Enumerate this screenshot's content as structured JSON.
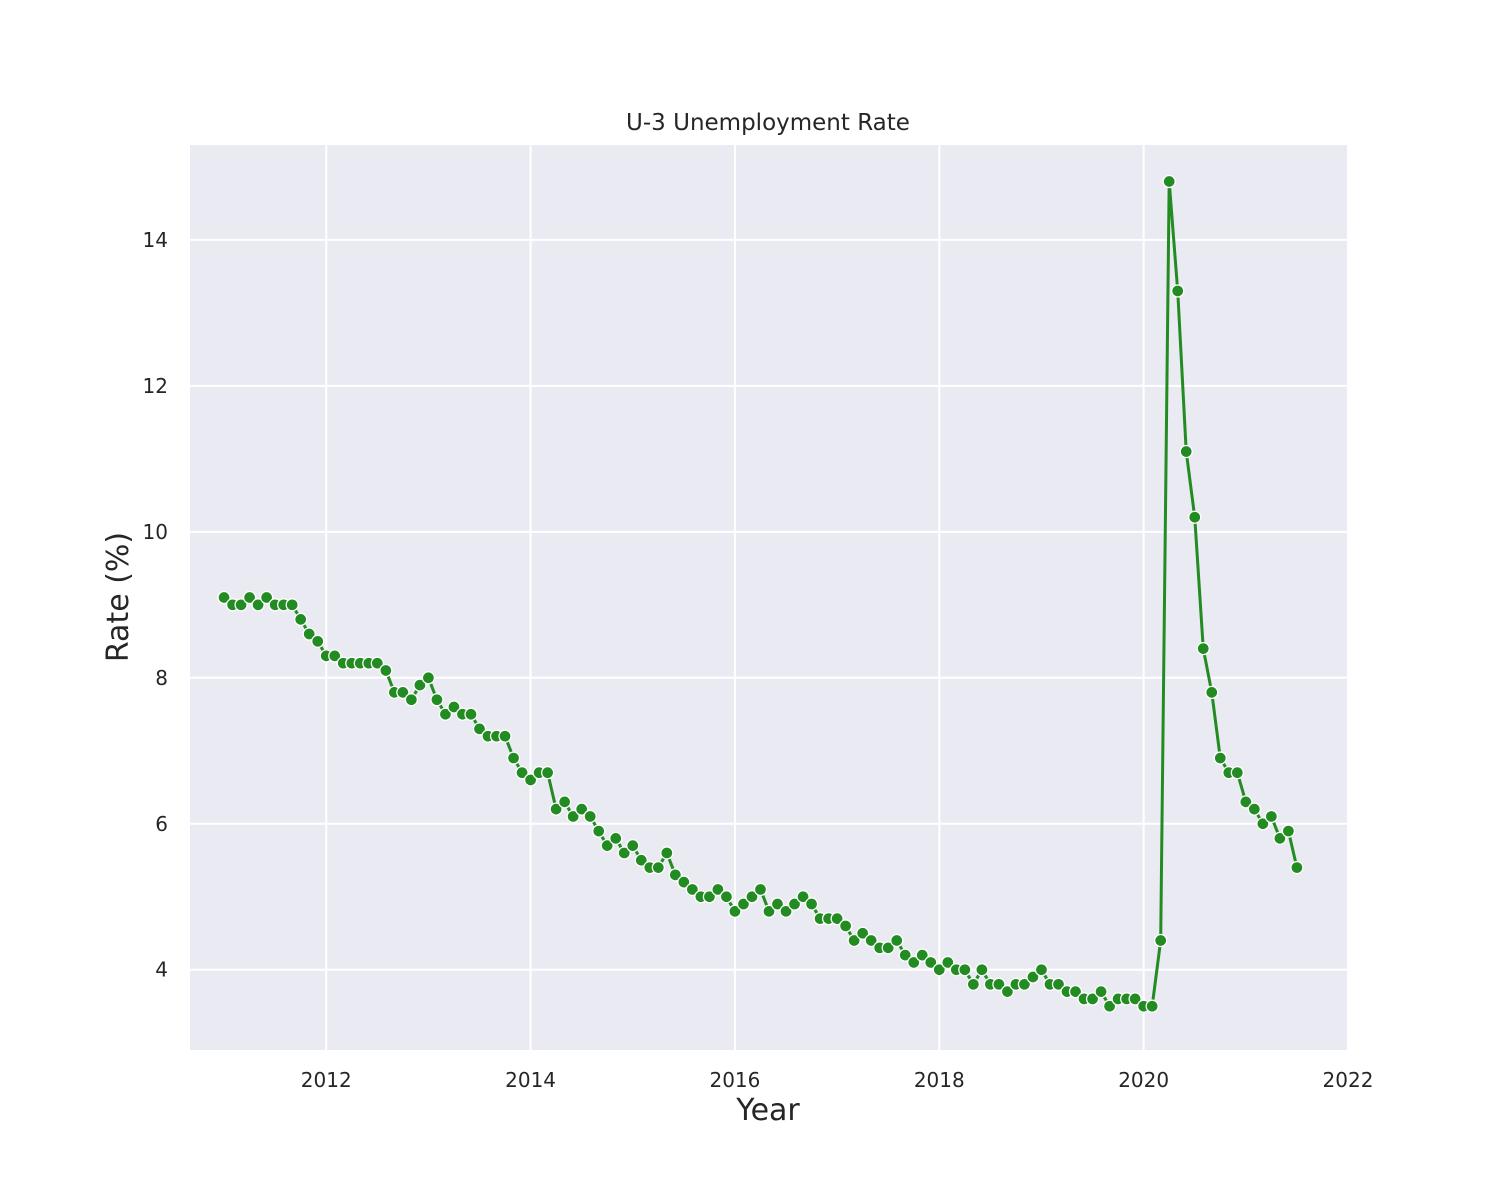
{
  "chart_data": {
    "type": "line",
    "title": "U-3 Unemployment Rate",
    "xlabel": "Year",
    "ylabel": "Rate (%)",
    "x_ticks": [
      "2012",
      "2014",
      "2016",
      "2018",
      "2020",
      "2022"
    ],
    "y_ticks": [
      "4",
      "6",
      "8",
      "10",
      "12",
      "14"
    ],
    "xlim": [
      "2010-09",
      "2022-01"
    ],
    "ylim": [
      2.9,
      15.3
    ],
    "grid": true,
    "colors": {
      "series": "#228b22",
      "background": "#eaeaf2",
      "grid": "#ffffff"
    },
    "series": [
      {
        "x": [
          "2011-01",
          "2011-02",
          "2011-03",
          "2011-04",
          "2011-05",
          "2011-06",
          "2011-07",
          "2011-08",
          "2011-09",
          "2011-10",
          "2011-11",
          "2011-12",
          "2012-01",
          "2012-02",
          "2012-03",
          "2012-04",
          "2012-05",
          "2012-06",
          "2012-07",
          "2012-08",
          "2012-09",
          "2012-10",
          "2012-11",
          "2012-12",
          "2013-01",
          "2013-02",
          "2013-03",
          "2013-04",
          "2013-05",
          "2013-06",
          "2013-07",
          "2013-08",
          "2013-09",
          "2013-10",
          "2013-11",
          "2013-12",
          "2014-01",
          "2014-02",
          "2014-03",
          "2014-04",
          "2014-05",
          "2014-06",
          "2014-07",
          "2014-08",
          "2014-09",
          "2014-10",
          "2014-11",
          "2014-12",
          "2015-01",
          "2015-02",
          "2015-03",
          "2015-04",
          "2015-05",
          "2015-06",
          "2015-07",
          "2015-08",
          "2015-09",
          "2015-10",
          "2015-11",
          "2015-12",
          "2016-01",
          "2016-02",
          "2016-03",
          "2016-04",
          "2016-05",
          "2016-06",
          "2016-07",
          "2016-08",
          "2016-09",
          "2016-10",
          "2016-11",
          "2016-12",
          "2017-01",
          "2017-02",
          "2017-03",
          "2017-04",
          "2017-05",
          "2017-06",
          "2017-07",
          "2017-08",
          "2017-09",
          "2017-10",
          "2017-11",
          "2017-12",
          "2018-01",
          "2018-02",
          "2018-03",
          "2018-04",
          "2018-05",
          "2018-06",
          "2018-07",
          "2018-08",
          "2018-09",
          "2018-10",
          "2018-11",
          "2018-12",
          "2019-01",
          "2019-02",
          "2019-03",
          "2019-04",
          "2019-05",
          "2019-06",
          "2019-07",
          "2019-08",
          "2019-09",
          "2019-10",
          "2019-11",
          "2019-12",
          "2020-01",
          "2020-02",
          "2020-03",
          "2020-04",
          "2020-05",
          "2020-06",
          "2020-07",
          "2020-08",
          "2020-09",
          "2020-10",
          "2020-11",
          "2020-12",
          "2021-01",
          "2021-02",
          "2021-03",
          "2021-04",
          "2021-05",
          "2021-06",
          "2021-07"
        ],
        "y": [
          9.1,
          9.0,
          9.0,
          9.1,
          9.0,
          9.1,
          9.0,
          9.0,
          9.0,
          8.8,
          8.6,
          8.5,
          8.3,
          8.3,
          8.2,
          8.2,
          8.2,
          8.2,
          8.2,
          8.1,
          7.8,
          7.8,
          7.7,
          7.9,
          8.0,
          7.7,
          7.5,
          7.6,
          7.5,
          7.5,
          7.3,
          7.2,
          7.2,
          7.2,
          6.9,
          6.7,
          6.6,
          6.7,
          6.7,
          6.2,
          6.3,
          6.1,
          6.2,
          6.1,
          5.9,
          5.7,
          5.8,
          5.6,
          5.7,
          5.5,
          5.4,
          5.4,
          5.6,
          5.3,
          5.2,
          5.1,
          5.0,
          5.0,
          5.1,
          5.0,
          4.8,
          4.9,
          5.0,
          5.1,
          4.8,
          4.9,
          4.8,
          4.9,
          5.0,
          4.9,
          4.7,
          4.7,
          4.7,
          4.6,
          4.4,
          4.5,
          4.4,
          4.3,
          4.3,
          4.4,
          4.2,
          4.1,
          4.2,
          4.1,
          4.0,
          4.1,
          4.0,
          4.0,
          3.8,
          4.0,
          3.8,
          3.8,
          3.7,
          3.8,
          3.8,
          3.9,
          4.0,
          3.8,
          3.8,
          3.7,
          3.7,
          3.6,
          3.6,
          3.7,
          3.5,
          3.6,
          3.6,
          3.6,
          3.5,
          3.5,
          4.4,
          14.8,
          13.3,
          11.1,
          10.2,
          8.4,
          7.8,
          6.9,
          6.7,
          6.7,
          6.3,
          6.2,
          6.0,
          6.1,
          5.8,
          5.9,
          5.4
        ]
      }
    ]
  }
}
